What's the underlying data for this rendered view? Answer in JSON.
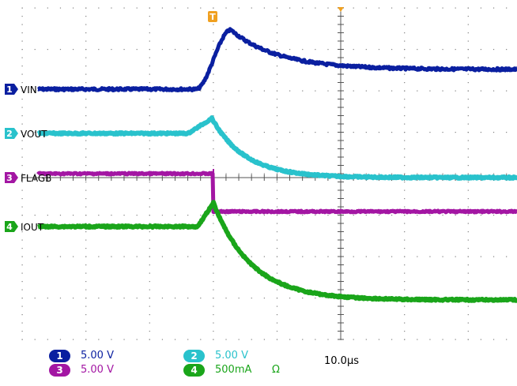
{
  "scope": {
    "colors": {
      "ch1": "#0a1fa0",
      "ch2": "#29c2cc",
      "ch3": "#a316a3",
      "ch4": "#1aa51a",
      "trigger": "#f0a020",
      "grid": "#808080"
    },
    "trigger_marker": "T",
    "channels": [
      {
        "num": "1",
        "name": "VIN",
        "scale": "5.00 V"
      },
      {
        "num": "2",
        "name": "VOUT",
        "scale": "5.00 V"
      },
      {
        "num": "3",
        "name": "FLAGB",
        "scale": "5.00 V"
      },
      {
        "num": "4",
        "name": "IOUT",
        "scale": "500mA",
        "unit_symbol": "Ω"
      }
    ],
    "timebase": "10.0µs"
  }
}
